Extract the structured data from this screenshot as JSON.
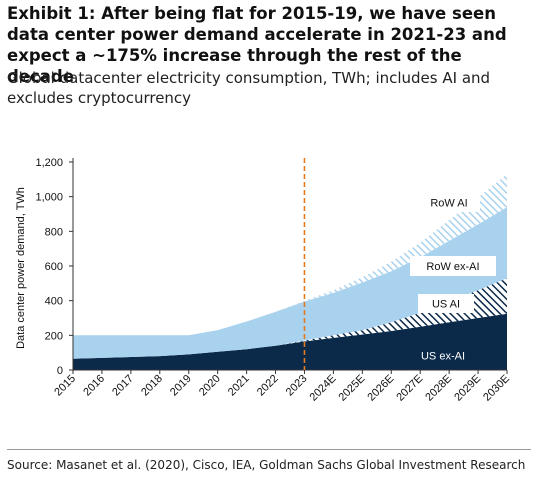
{
  "title": "Exhibit 1: After being flat for 2015-19, we have seen data center power demand accelerate in 2021-23 and expect a ~175% increase through the rest of the decade",
  "subtitle": "Global datacenter electricity consumption, TWh; includes AI and excludes cryptocurrency",
  "source": "Source: Masanet et al. (2020), Cisco, IEA, Goldman Sachs Global Investment Research",
  "colors": {
    "us_ex_ai": "#0b2a4a",
    "us_ai_stripe": "#0b2a4a",
    "row_ex_ai": "#a9d2ef",
    "row_ai_stripe": "#a9d2ef",
    "forecast_line": "#e07b1f"
  },
  "chart_data": {
    "type": "area",
    "stacked": true,
    "categories": [
      "2015",
      "2016",
      "2017",
      "2018",
      "2019",
      "2020",
      "2021",
      "2022",
      "2023",
      "2024E",
      "2025E",
      "2026E",
      "2027E",
      "2028E",
      "2029E",
      "2030E"
    ],
    "ylabel": "Data center power demand, TWh",
    "ylim": [
      0,
      1200
    ],
    "yticks": [
      "0",
      "200",
      "400",
      "600",
      "800",
      "1,000",
      "1,200"
    ],
    "yticks_values": [
      0,
      200,
      400,
      600,
      800,
      1000,
      1200
    ],
    "forecast_divider_at": "2023",
    "series": [
      {
        "name": "US ex-AI",
        "pattern": "solid",
        "values": [
          65,
          70,
          75,
          80,
          90,
          105,
          120,
          140,
          165,
          185,
          205,
          225,
          250,
          275,
          300,
          325
        ]
      },
      {
        "name": "US AI",
        "pattern": "hatched",
        "values": [
          0,
          0,
          0,
          0,
          0,
          0,
          0,
          0,
          5,
          15,
          25,
          50,
          80,
          120,
          160,
          205
        ]
      },
      {
        "name": "RoW ex-AI",
        "pattern": "solid",
        "values": [
          135,
          130,
          125,
          120,
          110,
          125,
          160,
          195,
          225,
          245,
          275,
          295,
          320,
          350,
          380,
          410
        ]
      },
      {
        "name": "RoW AI",
        "pattern": "hatched",
        "values": [
          0,
          0,
          0,
          0,
          0,
          0,
          0,
          0,
          5,
          15,
          30,
          55,
          85,
          120,
          155,
          190
        ]
      }
    ]
  }
}
